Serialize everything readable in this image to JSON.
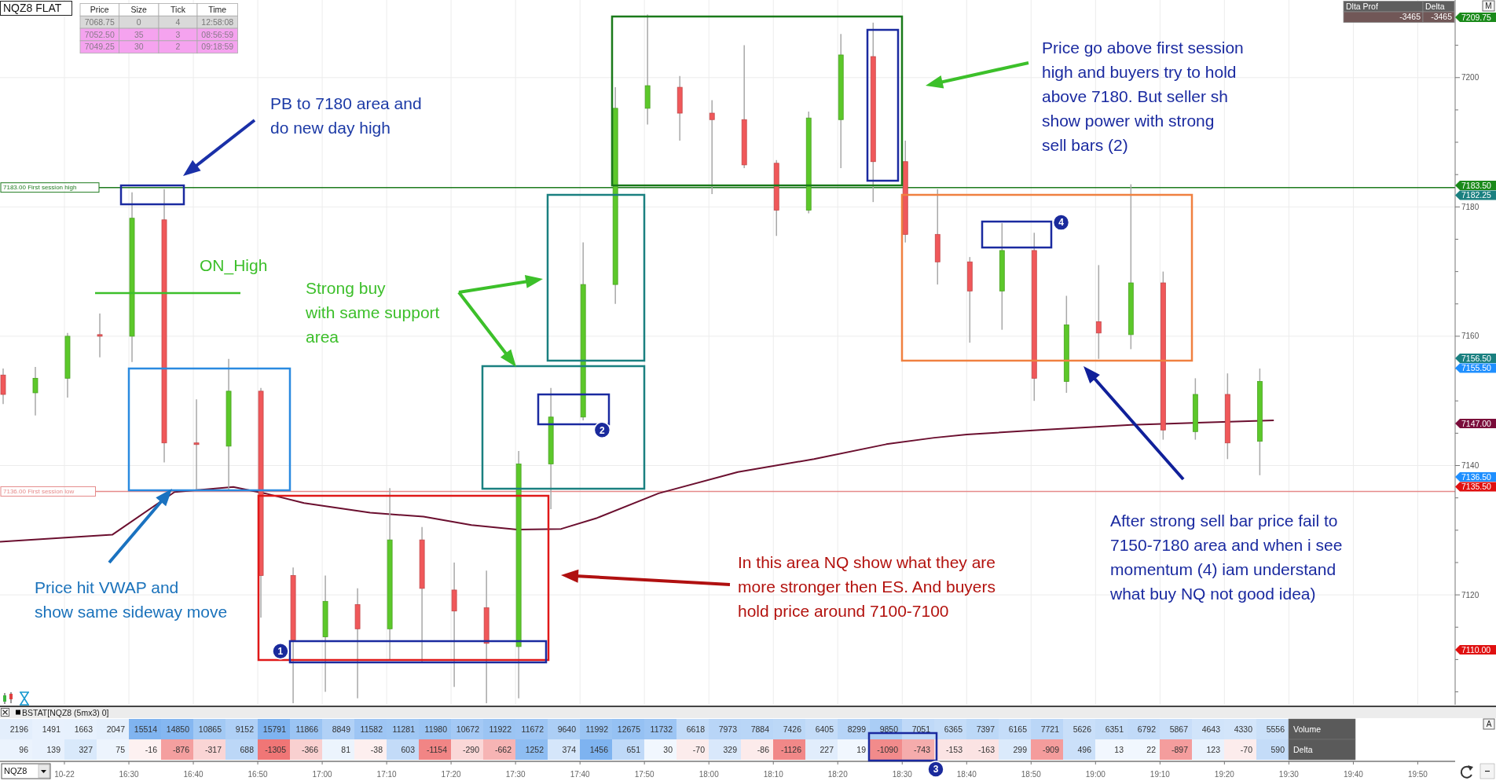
{
  "chart_data": [
    {
      "type": "candlestick",
      "title": "NQZ8 FLAT",
      "x": [
        16.1667,
        16.25,
        16.3333,
        16.4167,
        16.5,
        16.5833,
        16.6667,
        16.75,
        16.8333,
        16.9167,
        17,
        17.0833,
        17.1667,
        17.25,
        17.3333,
        17.4167,
        17.5,
        17.5833,
        17.6667,
        17.75,
        17.8333,
        17.9167,
        18,
        18.0833,
        18.1667,
        18.25,
        18.3333,
        18.4167,
        18.5,
        18.5833,
        18.6667,
        18.75,
        18.8333,
        18.9167,
        19,
        19.0833,
        19.1667,
        19.25,
        19.3333,
        19.4167
      ],
      "ohlc": [
        [
          7154,
          7155,
          7149.5,
          7151
        ],
        [
          7151.25,
          7155.25,
          7147.75,
          7153.5
        ],
        [
          7153.5,
          7160.5,
          7150.5,
          7160
        ],
        [
          7160.25,
          7163.5,
          7156.75,
          7160
        ],
        [
          7160,
          7182.25,
          7156,
          7178.25
        ],
        [
          7178,
          7182.75,
          7140.5,
          7143.5
        ],
        [
          7143.5,
          7150.25,
          7136.25,
          7143.25
        ],
        [
          7143,
          7156.5,
          7136.25,
          7151.5
        ],
        [
          7151.5,
          7152,
          7116.5,
          7123
        ],
        [
          7123,
          7124.25,
          7103.25,
          7113
        ],
        [
          7113.5,
          7123,
          7105,
          7119
        ],
        [
          7118.5,
          7121,
          7104,
          7114.75
        ],
        [
          7114.75,
          7136.5,
          7110,
          7128.5
        ],
        [
          7128.5,
          7130.5,
          7109.5,
          7121
        ],
        [
          7120.75,
          7125,
          7105.75,
          7117.5
        ],
        [
          7118,
          7123.75,
          7103.25,
          7112.5
        ],
        [
          7112,
          7142.25,
          7104,
          7140.25
        ],
        [
          7140.25,
          7152,
          7133.25,
          7147.5
        ],
        [
          7147.5,
          7174.5,
          7147,
          7168
        ],
        [
          7168,
          7198.5,
          7165,
          7195.25
        ],
        [
          7195.25,
          7209.75,
          7192.75,
          7198.75
        ],
        [
          7198.5,
          7200.25,
          7190.25,
          7194.5
        ],
        [
          7194.5,
          7196.5,
          7182,
          7193.5
        ],
        [
          7193.5,
          7205,
          7186,
          7186.5
        ],
        [
          7186.75,
          7187.25,
          7175.5,
          7179.5
        ],
        [
          7179.5,
          7194.75,
          7179,
          7193.75
        ],
        [
          7193.5,
          7206.75,
          7186,
          7203.5
        ],
        [
          7203.25,
          7208.5,
          7180.75,
          7187
        ],
        [
          7187,
          7190.25,
          7174.5,
          7175.75
        ],
        [
          7175.75,
          7182.75,
          7168,
          7171.5
        ],
        [
          7171.5,
          7172.25,
          7159,
          7167
        ],
        [
          7167,
          7177.5,
          7161,
          7173.25
        ],
        [
          7173.25,
          7176,
          7150,
          7153.5
        ],
        [
          7153,
          7166.25,
          7151.25,
          7161.75
        ],
        [
          7162.25,
          7171,
          7156.5,
          7160.5
        ],
        [
          7160.25,
          7183.5,
          7158,
          7168.25
        ],
        [
          7168.25,
          7170,
          7144,
          7145.5
        ],
        [
          7145.25,
          7153.5,
          7144,
          7151
        ],
        [
          7151,
          7154.25,
          7141,
          7143.5
        ],
        [
          7143.75,
          7155,
          7138.5,
          7153
        ]
      ],
      "colors": [
        "#f0585a",
        "#5cc82a",
        "#5cc82a",
        "#f0585a",
        "#5cc82a",
        "#f0585a",
        "#f0585a",
        "#5cc82a",
        "#f0585a",
        "#f0585a",
        "#5cc82a",
        "#f0585a",
        "#5cc82a",
        "#f0585a",
        "#f0585a",
        "#f0585a",
        "#5cc82a",
        "#5cc82a",
        "#5cc82a",
        "#5cc82a",
        "#5cc82a",
        "#f0585a",
        "#f0585a",
        "#f0585a",
        "#f0585a",
        "#5cc82a",
        "#5cc82a",
        "#f0585a",
        "#f0585a",
        "#f0585a",
        "#f0585a",
        "#5cc82a",
        "#f0585a",
        "#5cc82a",
        "#f0585a",
        "#5cc82a",
        "#f0585a",
        "#5cc82a",
        "#f0585a",
        "#5cc82a"
      ],
      "series": [
        {
          "type": "line",
          "color": "#6b0f2f",
          "x": [
            16.1667,
            16.457,
            16.618,
            16.77,
            16.852,
            16.953,
            17.124,
            17.262,
            17.386,
            17.504,
            17.618,
            17.711,
            17.87,
            18.075,
            18.272,
            18.459,
            18.583,
            18.667,
            18.856,
            19.092,
            19.461
          ],
          "values": [
            7128.2,
            7129.3,
            7135.9,
            7136.7,
            7135.7,
            7134.2,
            7132.7,
            7132.1,
            7130.8,
            7130.1,
            7130.2,
            7131.9,
            7135.7,
            7139,
            7141,
            7143.3,
            7144.3,
            7144.8,
            7145.5,
            7146.3,
            7147
          ]
        }
      ],
      "xlim": [
        16.1667,
        19.93
      ],
      "xticks": [
        {
          "value": 16.3333,
          "label": "10-22"
        },
        {
          "value": 16.5,
          "label": "16:30"
        },
        {
          "value": 16.6667,
          "label": "16:40"
        },
        {
          "value": 16.8333,
          "label": "16:50"
        },
        {
          "value": 17,
          "label": "17:00"
        },
        {
          "value": 17.1667,
          "label": "17:10"
        },
        {
          "value": 17.3333,
          "label": "17:20"
        },
        {
          "value": 17.5,
          "label": "17:30"
        },
        {
          "value": 17.6667,
          "label": "17:40"
        },
        {
          "value": 17.8333,
          "label": "17:50"
        },
        {
          "value": 18,
          "label": "18:00"
        },
        {
          "value": 18.1667,
          "label": "18:10"
        },
        {
          "value": 18.3333,
          "label": "18:20"
        },
        {
          "value": 18.5,
          "label": "18:30"
        },
        {
          "value": 18.6667,
          "label": "18:40"
        },
        {
          "value": 18.8333,
          "label": "18:50"
        },
        {
          "value": 19,
          "label": "19:00"
        },
        {
          "value": 19.1667,
          "label": "19:10"
        },
        {
          "value": 19.3333,
          "label": "19:20"
        },
        {
          "value": 19.5,
          "label": "19:30"
        },
        {
          "value": 19.6667,
          "label": "19:40"
        },
        {
          "value": 19.8333,
          "label": "19:50"
        }
      ],
      "ylim": [
        7103,
        7212
      ],
      "yticks": [
        {
          "value": 7105,
          "label": null
        },
        {
          "value": 7110,
          "label": null
        },
        {
          "value": 7115,
          "label": null
        },
        7120,
        {
          "value": 7125,
          "label": null
        },
        {
          "value": 7130,
          "label": null
        },
        {
          "value": 7135,
          "label": null
        },
        7140,
        {
          "value": 7145,
          "label": null
        },
        {
          "value": 7150,
          "label": null
        },
        {
          "value": 7155,
          "label": null
        },
        7160,
        {
          "value": 7165,
          "label": null
        },
        {
          "value": 7170,
          "label": null
        },
        {
          "value": 7175,
          "label": null
        },
        7180,
        {
          "value": 7185,
          "label": null
        },
        {
          "value": 7190,
          "label": null
        },
        {
          "value": 7195,
          "label": null
        },
        7200,
        {
          "value": 7205,
          "label": null
        }
      ],
      "grid": true,
      "ref_lines": [
        {
          "axis": "y",
          "value": 7183,
          "label": "7183.00 First session high",
          "color": "#1e7b1e"
        },
        {
          "axis": "y",
          "value": 7136,
          "label": "7136.00 First session low",
          "color": "#e58a8a"
        }
      ],
      "annotations": [
        "PB to 7180 area and\ndo new day high",
        "ON_High",
        "Strong buy\nwith same support\narea",
        "Price hit VWAP and\nshow same sideway move",
        "In this area NQ show what they are\nmore stronger then ES. And buyers\nhold price around 7100-7100",
        "Price go above first session\nhigh and buyers try to hold\nabove 7180. But seller sh\nshow power with strong\nsell bars (2)",
        "After strong sell bar price fail to\n7150-7180 area and when i see\nmomentum (4) iam understand\nwhat buy NQ not good idea)",
        {
          "text": "1",
          "x": 16.892,
          "y": 7111.3
        },
        {
          "text": "2",
          "x": 17.724,
          "y": 7145.5
        },
        {
          "text": "4",
          "x": 18.911,
          "y": 7177.6
        },
        "7209.75",
        "7183.50",
        "7182.25",
        "7156.50",
        "7155.50",
        "7147.00",
        "7136.50",
        "7135.50",
        "7110.00",
        "M"
      ]
    },
    {
      "type": "heatmap",
      "title": "BSTAT[NQZ8 (5mx3) 0]",
      "categories": [
        null,
        null,
        null,
        null,
        null,
        null,
        null,
        null,
        null,
        null,
        null,
        null,
        null,
        null,
        null,
        null,
        null,
        null,
        null,
        null,
        null,
        null,
        null,
        null,
        null,
        null,
        null,
        null,
        null,
        null,
        null,
        null,
        null,
        null,
        null,
        null,
        null,
        null,
        null,
        null
      ],
      "y_categories": [
        "Volume",
        "Delta"
      ],
      "cells": [
        [
          2196,
          1491,
          1663,
          2047,
          15514,
          14850,
          10865,
          9152,
          15791,
          11866,
          8849,
          11582,
          11281,
          11980,
          10672,
          11922,
          11672,
          9640,
          11992,
          12675,
          11732,
          6618,
          7973,
          7884,
          7426,
          6405,
          8299,
          9850,
          7051,
          6365,
          7397,
          6165,
          7721,
          5626,
          6351,
          6792,
          5867,
          4643,
          4330,
          5556
        ],
        [
          96,
          139,
          327,
          75,
          -16,
          -876,
          -317,
          688,
          -1305,
          -366,
          81,
          -38,
          603,
          -1154,
          -290,
          -662,
          1252,
          374,
          1456,
          651,
          30,
          -70,
          329,
          -86,
          -1126,
          227,
          19,
          -1090,
          -743,
          -153,
          -163,
          299,
          -909,
          496,
          13,
          22,
          -897,
          123,
          -70,
          590
        ]
      ],
      "data_labels": true,
      "annotations": [
        "3",
        "A",
        "NQZ8"
      ]
    },
    {
      "type": "other",
      "categories": [
        "Price",
        "Size",
        "Tick",
        "Time"
      ],
      "cell_labels": [
        [
          "7068.75",
          "0",
          "4",
          "12:58:08"
        ],
        [
          "7052.50",
          "35",
          "3",
          "08:56:59"
        ],
        [
          "7049.25",
          "30",
          "2",
          "09:18:59"
        ]
      ]
    },
    {
      "type": "other",
      "categories": [
        "Dlta Prof",
        "Delta"
      ],
      "cell_labels": [
        [
          "-3465",
          "-3465"
        ]
      ]
    }
  ]
}
